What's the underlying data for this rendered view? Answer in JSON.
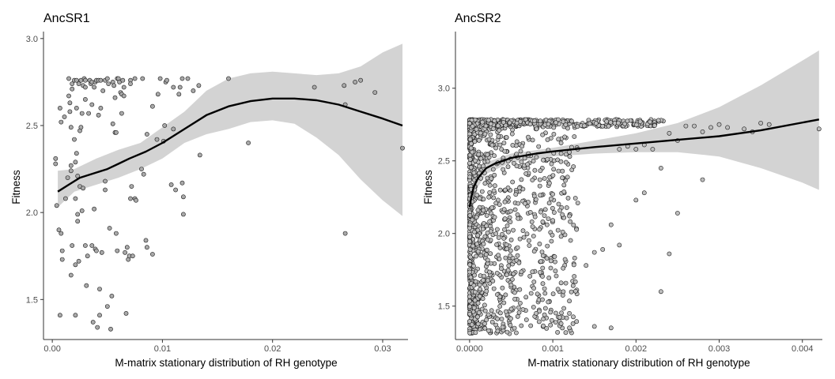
{
  "chart_data": [
    {
      "type": "scatter",
      "title": "AncSR1",
      "xlabel": "M-matrix stationary distribution of RH genotype",
      "ylabel": "Fitness",
      "xlim": [
        -0.0008,
        0.0323
      ],
      "ylim": [
        1.27,
        3.04
      ],
      "x_ticks": [
        0.0,
        0.01,
        0.02,
        0.03
      ],
      "x_tick_labels": [
        "0.00",
        "0.01",
        "0.02",
        "0.03"
      ],
      "y_ticks": [
        1.5,
        2.0,
        2.5,
        3.0
      ],
      "y_tick_labels": [
        "1.5",
        "2.0",
        "2.5",
        "3.0"
      ],
      "grid": false,
      "legend": "none",
      "colors": {
        "point_fill": "#a9a9a9",
        "point_stroke": "#1a1a1a",
        "band": "#d3d3d3",
        "line": "#000000",
        "axis": "#333333"
      },
      "points": [
        [
          0.0003,
          2.31
        ],
        [
          0.0003,
          2.28
        ],
        [
          0.0004,
          2.04
        ],
        [
          0.0006,
          1.9
        ],
        [
          0.0007,
          2.6
        ],
        [
          0.0007,
          1.41
        ],
        [
          0.0008,
          1.88
        ],
        [
          0.0008,
          2.52
        ],
        [
          0.0009,
          1.73
        ],
        [
          0.0009,
          1.78
        ],
        [
          0.0011,
          2.55
        ],
        [
          0.0012,
          2.08
        ],
        [
          0.0014,
          2.2
        ],
        [
          0.0015,
          2.77
        ],
        [
          0.0015,
          2.67
        ],
        [
          0.0016,
          2.63
        ],
        [
          0.0016,
          2.58
        ],
        [
          0.0017,
          2.27
        ],
        [
          0.0017,
          2.49
        ],
        [
          0.0017,
          2.24
        ],
        [
          0.0017,
          1.64
        ],
        [
          0.0018,
          2.71
        ],
        [
          0.0018,
          2.74
        ],
        [
          0.0018,
          1.81
        ],
        [
          0.002,
          2.76
        ],
        [
          0.002,
          2.42
        ],
        [
          0.0021,
          2.29
        ],
        [
          0.0021,
          2.08
        ],
        [
          0.0021,
          1.7
        ],
        [
          0.0021,
          1.41
        ],
        [
          0.0022,
          2.76
        ],
        [
          0.0022,
          2.6
        ],
        [
          0.0022,
          2.34
        ],
        [
          0.0023,
          1.95
        ],
        [
          0.0023,
          2.21
        ],
        [
          0.0023,
          1.99
        ],
        [
          0.0024,
          2.74
        ],
        [
          0.0024,
          1.72
        ],
        [
          0.0025,
          2.47
        ],
        [
          0.0025,
          2.15
        ],
        [
          0.0026,
          2.76
        ],
        [
          0.0026,
          2.49
        ],
        [
          0.0027,
          2.57
        ],
        [
          0.0027,
          2.01
        ],
        [
          0.0028,
          2.73
        ],
        [
          0.0028,
          2.14
        ],
        [
          0.0029,
          2.77
        ],
        [
          0.003,
          2.65
        ],
        [
          0.003,
          2.76
        ],
        [
          0.003,
          2.72
        ],
        [
          0.003,
          1.81
        ],
        [
          0.0031,
          1.58
        ],
        [
          0.0032,
          1.75
        ],
        [
          0.0033,
          2.57
        ],
        [
          0.0034,
          2.76
        ],
        [
          0.0035,
          2.74
        ],
        [
          0.0036,
          2.75
        ],
        [
          0.0036,
          2.62
        ],
        [
          0.0036,
          1.81
        ],
        [
          0.0037,
          1.37
        ],
        [
          0.0038,
          2.02
        ],
        [
          0.0038,
          2.72
        ],
        [
          0.0039,
          2.75
        ],
        [
          0.0039,
          1.79
        ],
        [
          0.004,
          2.76
        ],
        [
          0.004,
          1.78
        ],
        [
          0.0041,
          1.34
        ],
        [
          0.0042,
          2.76
        ],
        [
          0.0042,
          2.56
        ],
        [
          0.0043,
          1.41
        ],
        [
          0.0043,
          1.56
        ],
        [
          0.0044,
          2.76
        ],
        [
          0.0044,
          2.6
        ],
        [
          0.0045,
          1.77
        ],
        [
          0.0046,
          2.7
        ],
        [
          0.0048,
          2.76
        ],
        [
          0.0048,
          2.18
        ],
        [
          0.0048,
          2.13
        ],
        [
          0.005,
          2.77
        ],
        [
          0.005,
          1.46
        ],
        [
          0.0051,
          2.74
        ],
        [
          0.0052,
          1.91
        ],
        [
          0.0053,
          1.33
        ],
        [
          0.0054,
          1.52
        ],
        [
          0.0055,
          2.75
        ],
        [
          0.0055,
          2.51
        ],
        [
          0.0056,
          2.73
        ],
        [
          0.0057,
          2.66
        ],
        [
          0.0057,
          2.46
        ],
        [
          0.0058,
          2.46
        ],
        [
          0.0058,
          1.88
        ],
        [
          0.0059,
          2.77
        ],
        [
          0.0059,
          1.78
        ],
        [
          0.006,
          2.77
        ],
        [
          0.0061,
          2.75
        ],
        [
          0.0062,
          2.69
        ],
        [
          0.0063,
          2.57
        ],
        [
          0.0063,
          2.68
        ],
        [
          0.0064,
          2.76
        ],
        [
          0.0065,
          2.72
        ],
        [
          0.0065,
          2.67
        ],
        [
          0.0066,
          1.77
        ],
        [
          0.0067,
          1.42
        ],
        [
          0.0068,
          1.8
        ],
        [
          0.0069,
          1.73
        ],
        [
          0.007,
          1.75
        ],
        [
          0.0071,
          2.76
        ],
        [
          0.0071,
          2.74
        ],
        [
          0.0071,
          2.08
        ],
        [
          0.0072,
          2.15
        ],
        [
          0.0073,
          1.75
        ],
        [
          0.0075,
          2.77
        ],
        [
          0.0075,
          2.08
        ],
        [
          0.0076,
          2.07
        ],
        [
          0.0081,
          2.25
        ],
        [
          0.0082,
          2.77
        ],
        [
          0.0083,
          2.22
        ],
        [
          0.0085,
          1.84
        ],
        [
          0.0086,
          2.45
        ],
        [
          0.0086,
          1.8
        ],
        [
          0.0091,
          2.61
        ],
        [
          0.0091,
          1.76
        ],
        [
          0.0095,
          2.42
        ],
        [
          0.0096,
          2.68
        ],
        [
          0.0098,
          2.77
        ],
        [
          0.0101,
          2.41
        ],
        [
          0.0102,
          2.5
        ],
        [
          0.0103,
          2.75
        ],
        [
          0.0104,
          2.76
        ],
        [
          0.0108,
          2.16
        ],
        [
          0.011,
          2.48
        ],
        [
          0.011,
          2.72
        ],
        [
          0.0112,
          2.13
        ],
        [
          0.0115,
          2.68
        ],
        [
          0.0116,
          2.72
        ],
        [
          0.0118,
          2.77
        ],
        [
          0.0118,
          2.17
        ],
        [
          0.0119,
          2.09
        ],
        [
          0.0119,
          1.99
        ],
        [
          0.0123,
          2.77
        ],
        [
          0.0128,
          2.7
        ],
        [
          0.0133,
          2.73
        ],
        [
          0.0134,
          2.33
        ],
        [
          0.016,
          2.77
        ],
        [
          0.0178,
          2.4
        ],
        [
          0.0238,
          2.72
        ],
        [
          0.0265,
          2.73
        ],
        [
          0.0266,
          2.62
        ],
        [
          0.0266,
          1.88
        ],
        [
          0.0275,
          2.75
        ],
        [
          0.028,
          2.76
        ],
        [
          0.0293,
          2.69
        ],
        [
          0.0318,
          2.37
        ]
      ],
      "smooth_line": [
        [
          0.0005,
          2.12
        ],
        [
          0.0015,
          2.16
        ],
        [
          0.0025,
          2.2
        ],
        [
          0.004,
          2.23
        ],
        [
          0.005,
          2.25
        ],
        [
          0.006,
          2.28
        ],
        [
          0.007,
          2.31
        ],
        [
          0.0085,
          2.35
        ],
        [
          0.01,
          2.4
        ],
        [
          0.012,
          2.48
        ],
        [
          0.014,
          2.56
        ],
        [
          0.016,
          2.61
        ],
        [
          0.018,
          2.64
        ],
        [
          0.02,
          2.655
        ],
        [
          0.022,
          2.655
        ],
        [
          0.024,
          2.645
        ],
        [
          0.026,
          2.62
        ],
        [
          0.028,
          2.58
        ],
        [
          0.03,
          2.54
        ],
        [
          0.0318,
          2.5
        ]
      ],
      "confidence_band": [
        [
          0.0005,
          2.03,
          2.24
        ],
        [
          0.002,
          2.12,
          2.25
        ],
        [
          0.004,
          2.16,
          2.31
        ],
        [
          0.006,
          2.2,
          2.36
        ],
        [
          0.008,
          2.25,
          2.4
        ],
        [
          0.01,
          2.31,
          2.49
        ],
        [
          0.012,
          2.4,
          2.58
        ],
        [
          0.014,
          2.45,
          2.7
        ],
        [
          0.016,
          2.48,
          2.77
        ],
        [
          0.018,
          2.52,
          2.8
        ],
        [
          0.02,
          2.53,
          2.81
        ],
        [
          0.022,
          2.51,
          2.8
        ],
        [
          0.024,
          2.43,
          2.79
        ],
        [
          0.026,
          2.33,
          2.8
        ],
        [
          0.028,
          2.19,
          2.84
        ],
        [
          0.03,
          2.07,
          2.92
        ],
        [
          0.0318,
          1.98,
          2.97
        ]
      ]
    },
    {
      "type": "scatter",
      "title": "AncSR2",
      "xlabel": "M-matrix stationary distribution of RH genotype",
      "ylabel": "Fitness",
      "xlim": [
        -0.00017,
        0.00424
      ],
      "ylim": [
        1.27,
        3.39
      ],
      "x_ticks": [
        0.0,
        0.001,
        0.002,
        0.003,
        0.004
      ],
      "x_tick_labels": [
        "0.0000",
        "0.001",
        "0.002",
        "0.003",
        "0.004"
      ],
      "y_ticks": [
        1.5,
        2.0,
        2.5,
        3.0
      ],
      "y_tick_labels": [
        "1.5",
        "2.0",
        "2.5",
        "3.0"
      ],
      "grid": false,
      "legend": "none",
      "colors": {
        "point_fill": "#bebebe",
        "point_stroke": "#1a1a1a",
        "band": "#d3d3d3",
        "line": "#000000",
        "axis": "#333333"
      },
      "points": [
        [
          0.0024,
          1.86
        ],
        [
          0.0021,
          2.28
        ],
        [
          0.002,
          2.23
        ],
        [
          0.0025,
          2.14
        ],
        [
          0.0023,
          1.6
        ],
        [
          0.0028,
          2.37
        ],
        [
          0.0017,
          2.06
        ],
        [
          0.0018,
          1.92
        ],
        [
          0.0015,
          1.87
        ],
        [
          0.0016,
          1.89
        ],
        [
          0.0014,
          1.78
        ],
        [
          0.0015,
          1.36
        ],
        [
          0.0017,
          1.35
        ],
        [
          0.0042,
          2.72
        ],
        [
          0.0036,
          2.75
        ],
        [
          0.0034,
          2.7
        ],
        [
          0.0035,
          2.76
        ],
        [
          0.0033,
          2.72
        ],
        [
          0.0031,
          2.73
        ],
        [
          0.003,
          2.75
        ],
        [
          0.0029,
          2.73
        ],
        [
          0.0028,
          2.7
        ],
        [
          0.0027,
          2.74
        ],
        [
          0.0026,
          2.74
        ],
        [
          0.0025,
          2.64
        ],
        [
          0.0024,
          2.69
        ],
        [
          0.0023,
          2.45
        ],
        [
          0.0022,
          2.58
        ],
        [
          0.0021,
          2.61
        ],
        [
          0.002,
          2.58
        ],
        [
          0.0019,
          2.6
        ],
        [
          0.0018,
          2.58
        ],
        [
          0.0013,
          2.58
        ],
        [
          0.0012,
          2.56
        ],
        [
          0.0011,
          2.55
        ],
        [
          0.0013,
          2.21
        ],
        [
          0.0012,
          2.12
        ],
        [
          0.0011,
          1.98
        ],
        [
          0.0011,
          1.66
        ],
        [
          0.001,
          2.27
        ],
        [
          0.001,
          2.09
        ],
        [
          0.0009,
          1.62
        ],
        [
          0.0009,
          1.44
        ],
        [
          0.0008,
          1.45
        ],
        [
          0.0012,
          1.35
        ],
        [
          0.0012,
          1.45
        ],
        [
          0.0011,
          1.38
        ]
      ],
      "dense_cluster": {
        "count": 1500,
        "x_range": [
          0.0,
          0.0013
        ],
        "y_range": [
          1.31,
          2.78
        ],
        "top_band_y": 2.76,
        "top_band_x_range": [
          0.0,
          0.00235
        ]
      },
      "smooth_line": [
        [
          0.0,
          2.18
        ],
        [
          2e-05,
          2.25
        ],
        [
          5e-05,
          2.32
        ],
        [
          0.0001,
          2.38
        ],
        [
          0.0002,
          2.45
        ],
        [
          0.0003,
          2.48
        ],
        [
          0.0005,
          2.52
        ],
        [
          0.0008,
          2.55
        ],
        [
          0.001,
          2.565
        ],
        [
          0.0015,
          2.595
        ],
        [
          0.002,
          2.62
        ],
        [
          0.0025,
          2.645
        ],
        [
          0.003,
          2.67
        ],
        [
          0.0035,
          2.71
        ],
        [
          0.0042,
          2.785
        ]
      ],
      "confidence_band": [
        [
          0.0,
          2.08,
          2.28
        ],
        [
          0.0001,
          2.32,
          2.44
        ],
        [
          0.0002,
          2.41,
          2.49
        ],
        [
          0.0005,
          2.49,
          2.55
        ],
        [
          0.001,
          2.53,
          2.59
        ],
        [
          0.0015,
          2.55,
          2.64
        ],
        [
          0.002,
          2.56,
          2.69
        ],
        [
          0.0025,
          2.56,
          2.76
        ],
        [
          0.003,
          2.53,
          2.87
        ],
        [
          0.0035,
          2.45,
          3.02
        ],
        [
          0.004,
          2.35,
          3.19
        ],
        [
          0.0042,
          2.3,
          3.26
        ]
      ]
    }
  ]
}
